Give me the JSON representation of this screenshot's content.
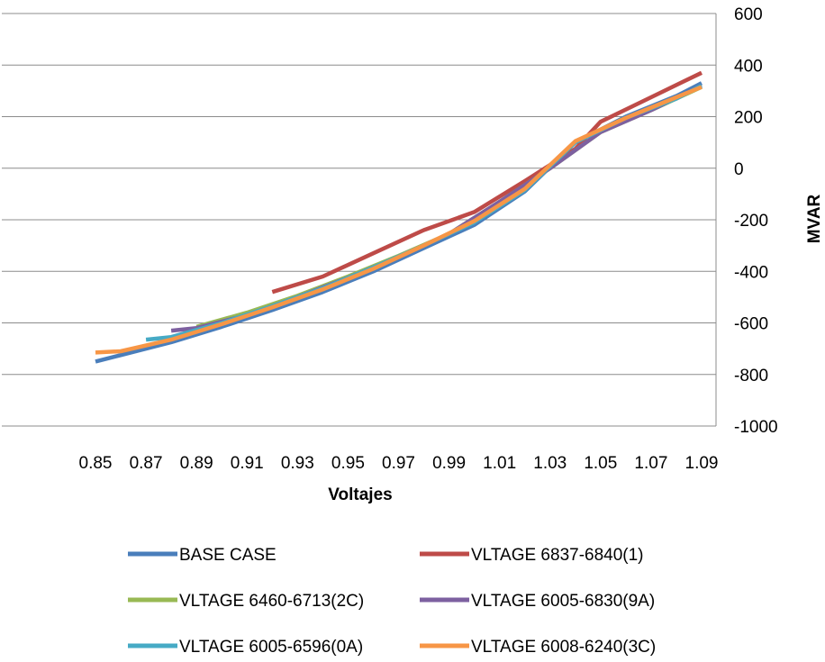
{
  "chart_data": {
    "type": "line",
    "xlabel": "Voltajes",
    "ylabel": "MVAR",
    "y_axis_side": "right",
    "ylim": [
      -1000,
      600
    ],
    "y_ticks": [
      600,
      400,
      200,
      0,
      -200,
      -400,
      -600,
      -800,
      -1000
    ],
    "x_ticks": [
      "0.85",
      "0.87",
      "0.89",
      "0.91",
      "0.93",
      "0.95",
      "0.97",
      "0.99",
      "1.01",
      "1.03",
      "1.05",
      "1.07",
      "1.09"
    ],
    "xlim": [
      0.85,
      1.09
    ],
    "grid": "horizontal",
    "legend_position": "bottom",
    "series": [
      {
        "name": "BASE CASE",
        "color": "#4a7ebb",
        "points": [
          [
            0.85,
            -750
          ],
          [
            0.86,
            -725
          ],
          [
            0.88,
            -675
          ],
          [
            0.9,
            -615
          ],
          [
            0.92,
            -550
          ],
          [
            0.94,
            -480
          ],
          [
            0.96,
            -400
          ],
          [
            0.98,
            -310
          ],
          [
            1.0,
            -220
          ],
          [
            1.02,
            -90
          ],
          [
            1.04,
            100
          ],
          [
            1.06,
            200
          ],
          [
            1.08,
            280
          ],
          [
            1.09,
            330
          ]
        ]
      },
      {
        "name": "VLTAGE 6837-6840(1)",
        "color": "#be4b48",
        "points": [
          [
            0.92,
            -480
          ],
          [
            0.94,
            -420
          ],
          [
            0.96,
            -330
          ],
          [
            0.98,
            -240
          ],
          [
            1.0,
            -170
          ],
          [
            1.02,
            -50
          ],
          [
            1.04,
            75
          ],
          [
            1.05,
            180
          ],
          [
            1.07,
            275
          ],
          [
            1.09,
            370
          ]
        ]
      },
      {
        "name": "VLTAGE 6460-6713(2C)",
        "color": "#98b954",
        "points": [
          [
            0.89,
            -615
          ],
          [
            0.91,
            -560
          ],
          [
            0.93,
            -495
          ],
          [
            0.95,
            -420
          ],
          [
            0.97,
            -340
          ],
          [
            0.99,
            -255
          ],
          [
            1.01,
            -130
          ],
          [
            1.03,
            0
          ],
          [
            1.05,
            140
          ],
          [
            1.07,
            225
          ],
          [
            1.09,
            315
          ]
        ]
      },
      {
        "name": "VLTAGE 6005-6830(9A)",
        "color": "#7d60a0",
        "points": [
          [
            0.88,
            -630
          ],
          [
            0.89,
            -620
          ],
          [
            0.91,
            -570
          ],
          [
            0.93,
            -500
          ],
          [
            0.95,
            -425
          ],
          [
            0.97,
            -345
          ],
          [
            0.99,
            -255
          ],
          [
            1.01,
            -130
          ],
          [
            1.03,
            0
          ],
          [
            1.05,
            140
          ],
          [
            1.07,
            225
          ],
          [
            1.09,
            320
          ]
        ]
      },
      {
        "name": "VLTAGE 6005-6596(0A)",
        "color": "#46aac5",
        "points": [
          [
            0.87,
            -665
          ],
          [
            0.88,
            -655
          ],
          [
            0.9,
            -600
          ],
          [
            0.92,
            -535
          ],
          [
            0.94,
            -465
          ],
          [
            0.96,
            -385
          ],
          [
            0.98,
            -300
          ],
          [
            1.0,
            -210
          ],
          [
            1.02,
            -85
          ],
          [
            1.04,
            100
          ],
          [
            1.06,
            195
          ],
          [
            1.08,
            270
          ],
          [
            1.09,
            320
          ]
        ]
      },
      {
        "name": "VLTAGE 6008-6240(3C)",
        "color": "#f79646",
        "points": [
          [
            0.85,
            -715
          ],
          [
            0.86,
            -710
          ],
          [
            0.88,
            -665
          ],
          [
            0.9,
            -605
          ],
          [
            0.92,
            -540
          ],
          [
            0.94,
            -470
          ],
          [
            0.96,
            -390
          ],
          [
            0.98,
            -300
          ],
          [
            1.0,
            -205
          ],
          [
            1.02,
            -80
          ],
          [
            1.04,
            105
          ],
          [
            1.06,
            195
          ],
          [
            1.08,
            275
          ],
          [
            1.09,
            315
          ]
        ]
      }
    ]
  }
}
